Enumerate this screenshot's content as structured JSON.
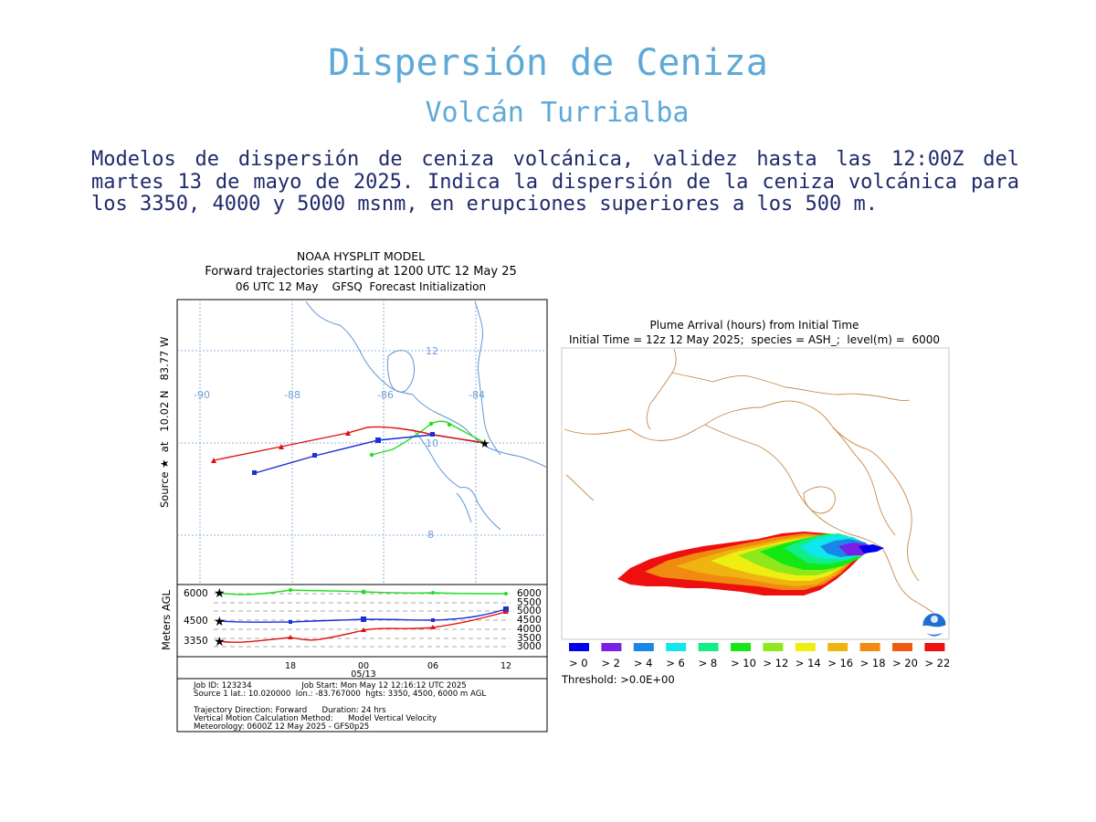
{
  "header": {
    "title": "Dispersión de Ceniza",
    "subtitle": "Volcán Turrialba",
    "description": "Modelos de dispersión de ceniza volcánica, validez hasta las 12:00Z del martes 13 de mayo de 2025. Indica la dispersión de la ceniza volcánica para los 3350, 4000 y 5000 msnm, en erupciones superiores a los 500 m."
  },
  "hysplit": {
    "title_line1": "NOAA HYSPLIT MODEL",
    "title_line2": "Forward trajectories starting at 1200 UTC 12 May 25",
    "title_line3": "06 UTC 12 May    GFSQ  Forecast Initialization",
    "source_label": "Source ★  at   10.02 N   83.77 W",
    "lon_labels": [
      "-90",
      "-88",
      "-86",
      "-84"
    ],
    "lat_labels": [
      "12",
      "10",
      "8"
    ],
    "vertical_axis_label": "Meters AGL",
    "left_height_labels": [
      "6000",
      "4500",
      "3350"
    ],
    "right_height_labels": [
      "6000",
      "5500",
      "5000",
      "4500",
      "4000",
      "3500",
      "3000"
    ],
    "time_labels": [
      "18",
      "00",
      "06",
      "12"
    ],
    "date_label": "05/13",
    "info_line1": "Job ID: 123234                    Job Start: Mon May 12 12:16:12 UTC 2025",
    "info_line2": "Source 1 lat.: 10.020000  lon.: -83.767000  hgts: 3350, 4500, 6000 m AGL",
    "info_line3": "Trajectory Direction: Forward      Duration: 24 hrs",
    "info_line4": "Vertical Motion Calculation Method:      Model Vertical Velocity",
    "info_line5": "Meteorology: 0600Z 12 May 2025 - GFS0p25",
    "series_colors": {
      "6000": "#22dd22",
      "4500": "#1a2fd6",
      "3350": "#e01010"
    }
  },
  "plume": {
    "title_line1": "Plume Arrival (hours) from Initial Time",
    "title_line2": "Initial Time = 12z 12 May 2025;  species = ASH_;  level(m) =  6000",
    "legend_labels": [
      "> 0",
      "> 2",
      "> 4",
      "> 6",
      "> 8",
      "> 10",
      "> 12",
      "> 14",
      "> 16",
      "> 18",
      "> 20",
      "> 22"
    ],
    "legend_colors": [
      "#0000ee",
      "#7a1ee8",
      "#1a86e8",
      "#10e6ee",
      "#10ee88",
      "#14e814",
      "#8ee81a",
      "#eeee10",
      "#f0b410",
      "#f08a10",
      "#f05a10",
      "#ee1010"
    ],
    "threshold": "Threshold: >0.0E+00",
    "logo_icon": "noaa-logo-icon"
  }
}
